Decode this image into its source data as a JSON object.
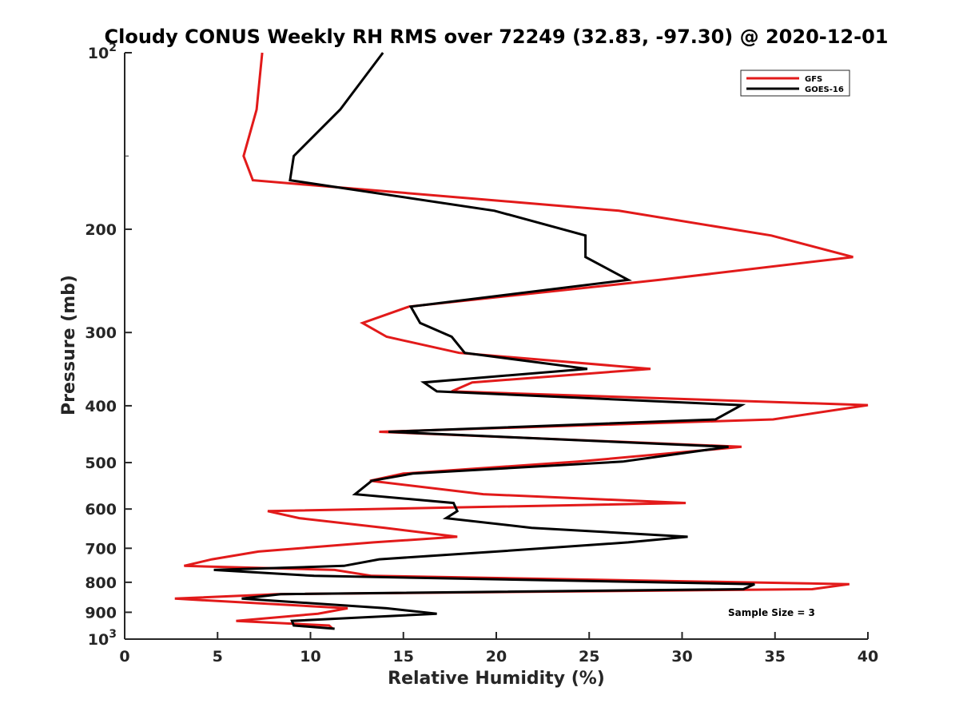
{
  "chart_data": {
    "type": "line",
    "title": "Cloudy CONUS Weekly RH RMS over 72249 (32.83, -97.30) @ 2020-12-01",
    "xlabel": "Relative Humidity (%)",
    "ylabel": "Pressure (mb)",
    "xlim": [
      0,
      40
    ],
    "ylim": [
      100,
      1000
    ],
    "yscale": "log",
    "y_reversed": true,
    "x_ticks": [
      "0",
      "5",
      "10",
      "15",
      "20",
      "25",
      "30",
      "35",
      "40"
    ],
    "y_ticks": [
      {
        "value": 100,
        "base": "10",
        "exp": "2"
      },
      {
        "value": 200,
        "base": "200",
        "exp": ""
      },
      {
        "value": 300,
        "base": "300",
        "exp": ""
      },
      {
        "value": 400,
        "base": "400",
        "exp": ""
      },
      {
        "value": 500,
        "base": "500",
        "exp": ""
      },
      {
        "value": 600,
        "base": "600",
        "exp": ""
      },
      {
        "value": 700,
        "base": "700",
        "exp": ""
      },
      {
        "value": 800,
        "base": "800",
        "exp": ""
      },
      {
        "value": 900,
        "base": "900",
        "exp": ""
      },
      {
        "value": 1000,
        "base": "10",
        "exp": "3"
      }
    ],
    "legend_position": "top-right",
    "annotation": "Sample Size = 3",
    "series": [
      {
        "name": "GFS",
        "color": "#e21a1a",
        "points": [
          [
            7.4,
            100
          ],
          [
            7.1,
            125
          ],
          [
            6.4,
            150
          ],
          [
            6.9,
            165
          ],
          [
            26.6,
            186
          ],
          [
            34.8,
            205
          ],
          [
            39.2,
            223
          ],
          [
            28.8,
            244
          ],
          [
            15.3,
            271
          ],
          [
            12.8,
            289
          ],
          [
            14.1,
            305
          ],
          [
            18.0,
            325
          ],
          [
            28.3,
            346
          ],
          [
            18.7,
            365
          ],
          [
            17.6,
            378
          ],
          [
            40.0,
            399
          ],
          [
            34.9,
            422
          ],
          [
            13.7,
            443
          ],
          [
            33.2,
            470
          ],
          [
            24.4,
            498
          ],
          [
            15.0,
            522
          ],
          [
            13.2,
            537
          ],
          [
            19.3,
            566
          ],
          [
            30.2,
            586
          ],
          [
            7.7,
            605
          ],
          [
            9.4,
            622
          ],
          [
            14.0,
            646
          ],
          [
            17.9,
            669
          ],
          [
            13.4,
            684
          ],
          [
            7.2,
            709
          ],
          [
            4.7,
            731
          ],
          [
            3.2,
            750
          ],
          [
            11.3,
            762
          ],
          [
            13.3,
            780
          ],
          [
            39.0,
            806
          ],
          [
            37.0,
            822
          ],
          [
            8.2,
            838
          ],
          [
            2.7,
            853
          ],
          [
            12.0,
            886
          ],
          [
            10.4,
            905
          ],
          [
            6.0,
            931
          ],
          [
            11.0,
            948
          ],
          [
            11.2,
            960
          ]
        ]
      },
      {
        "name": "GOES-16",
        "color": "#000000",
        "points": [
          [
            13.9,
            100
          ],
          [
            11.6,
            125
          ],
          [
            9.1,
            150
          ],
          [
            8.9,
            165
          ],
          [
            19.9,
            186
          ],
          [
            24.8,
            205
          ],
          [
            24.8,
            223
          ],
          [
            27.1,
            244
          ],
          [
            15.4,
            271
          ],
          [
            15.9,
            289
          ],
          [
            17.6,
            305
          ],
          [
            18.3,
            325
          ],
          [
            24.9,
            346
          ],
          [
            16.1,
            365
          ],
          [
            16.8,
            378
          ],
          [
            33.2,
            399
          ],
          [
            31.8,
            422
          ],
          [
            14.2,
            443
          ],
          [
            32.5,
            470
          ],
          [
            26.8,
            498
          ],
          [
            15.5,
            522
          ],
          [
            13.3,
            537
          ],
          [
            12.4,
            566
          ],
          [
            17.7,
            586
          ],
          [
            17.9,
            605
          ],
          [
            17.3,
            622
          ],
          [
            21.9,
            646
          ],
          [
            30.3,
            669
          ],
          [
            27.1,
            684
          ],
          [
            20.0,
            709
          ],
          [
            13.7,
            731
          ],
          [
            11.8,
            750
          ],
          [
            4.8,
            762
          ],
          [
            10.2,
            780
          ],
          [
            33.9,
            806
          ],
          [
            33.3,
            822
          ],
          [
            8.4,
            838
          ],
          [
            6.3,
            853
          ],
          [
            14.1,
            886
          ],
          [
            16.8,
            905
          ],
          [
            9.0,
            931
          ],
          [
            9.1,
            948
          ],
          [
            11.3,
            960
          ]
        ]
      }
    ]
  }
}
